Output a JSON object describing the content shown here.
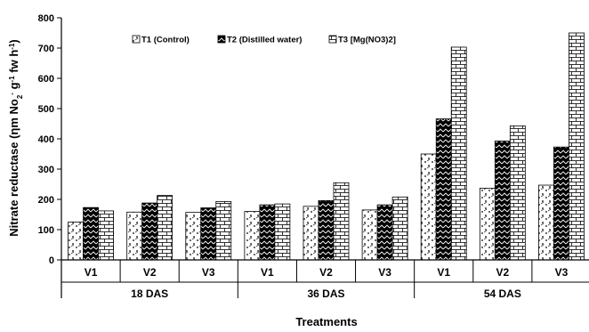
{
  "chart_data": {
    "type": "bar",
    "xlabel": "Treatments",
    "ylabel_parts": {
      "a": "Nitrate reductase (",
      "b": "ηm No",
      "c": "2",
      "d": "-",
      "e": " g",
      "f": "-1",
      "g": " fw h",
      "h": "-1",
      "i": ")"
    },
    "ylim": [
      0,
      800
    ],
    "yticks": [
      "0",
      "100",
      "200",
      "300",
      "400",
      "500",
      "600",
      "700",
      "800"
    ],
    "grid": false,
    "legend_position": "top",
    "groups": [
      "18 DAS",
      "36 DAS",
      "54 DAS"
    ],
    "categories": [
      "V1",
      "V2",
      "V3",
      "V1",
      "V2",
      "V3",
      "V1",
      "V2",
      "V3"
    ],
    "series": [
      {
        "name": "T1 (Control)",
        "values": [
          125,
          158,
          157,
          160,
          177,
          165,
          350,
          237,
          247
        ]
      },
      {
        "name": "T2 (Distilled water)",
        "values": [
          173,
          188,
          172,
          182,
          196,
          182,
          466,
          393,
          373
        ]
      },
      {
        "name": "T3 [Mg(NO3)2]",
        "values": [
          162,
          213,
          193,
          185,
          255,
          208,
          703,
          443,
          750
        ]
      }
    ]
  }
}
